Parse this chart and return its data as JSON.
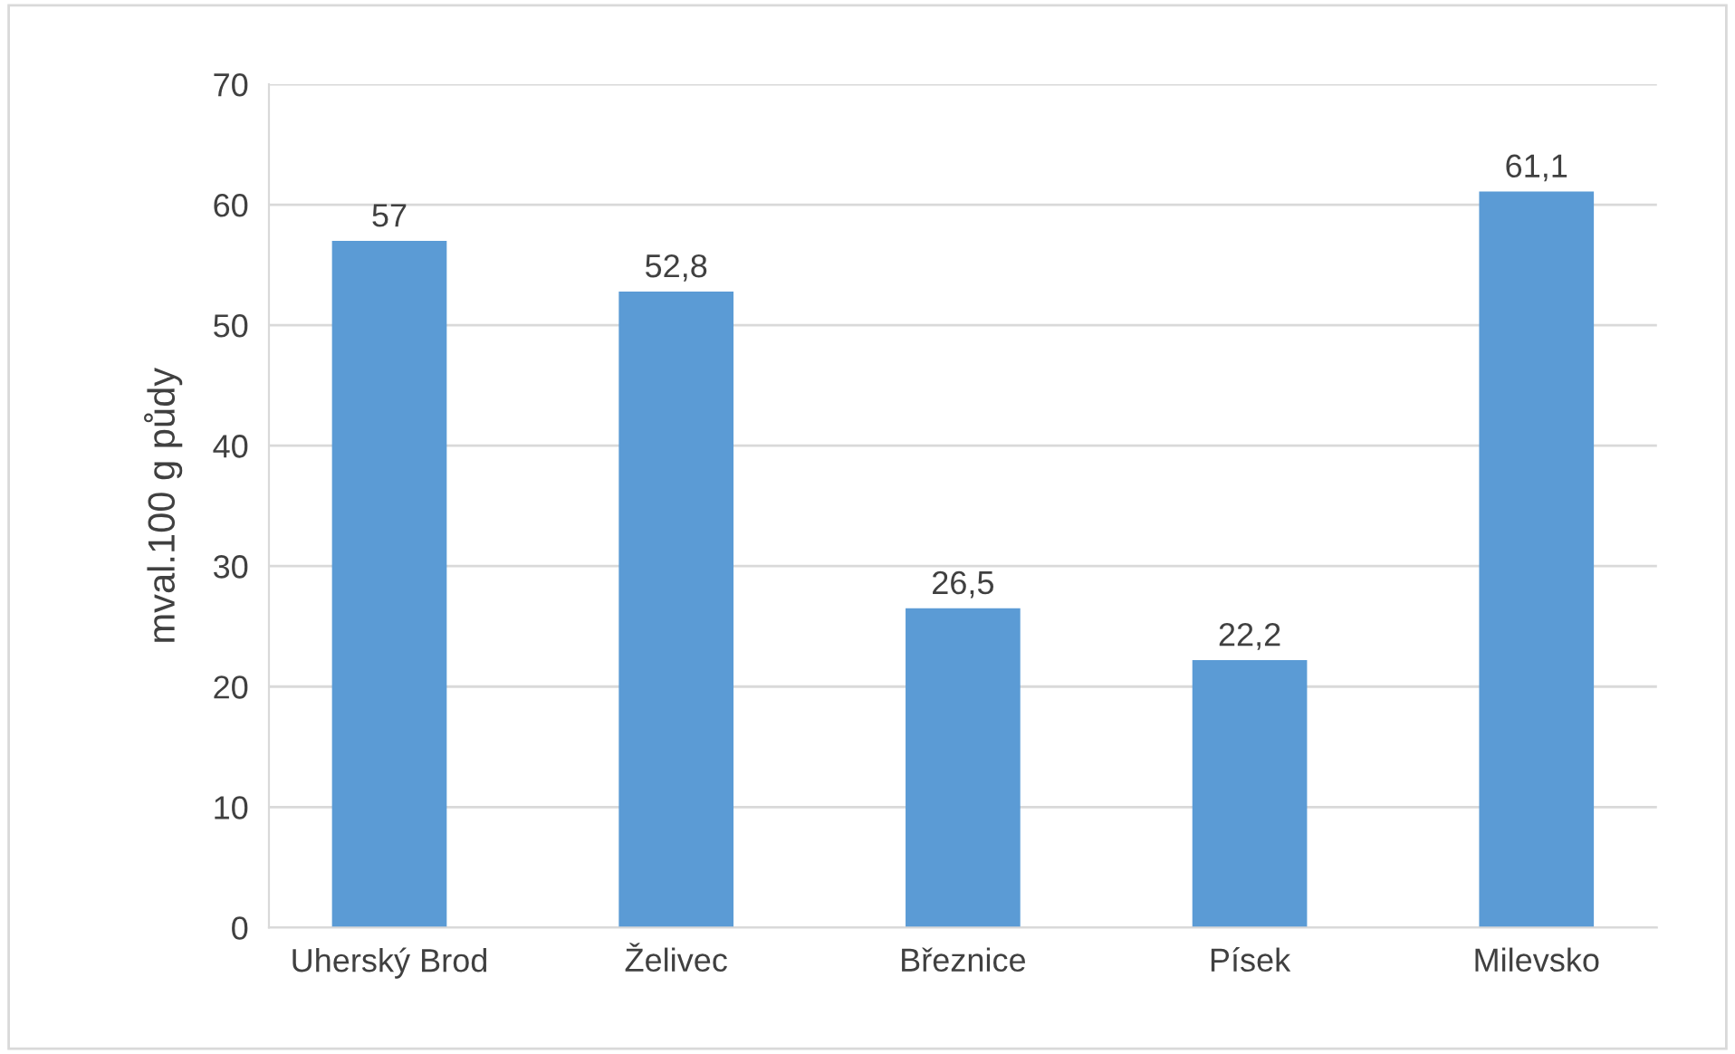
{
  "chart_data": {
    "type": "bar",
    "ylabel": "mval.100 g půdy",
    "categories": [
      "Uherský Brod",
      "Želivec",
      "Březnice",
      "Písek",
      "Milevsko"
    ],
    "values": [
      57,
      52.8,
      26.5,
      22.2,
      61.1
    ],
    "value_labels": [
      "57",
      "52,8",
      "26,5",
      "22,2",
      "61,1"
    ],
    "color": "#5b9bd5",
    "ylim": [
      0,
      70
    ],
    "yticks": [
      0,
      10,
      20,
      30,
      40,
      50,
      60,
      70
    ],
    "grid": "y"
  }
}
